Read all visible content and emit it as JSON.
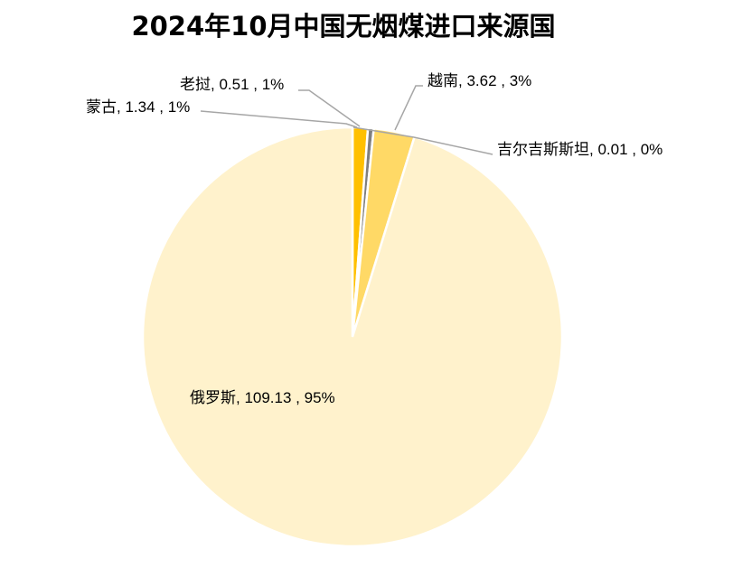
{
  "chart_data": {
    "type": "pie",
    "title": "2024年10月中国无烟煤进口来源国",
    "slices": [
      {
        "name": "吉尔吉斯斯坦",
        "value": 0.01,
        "percent": "0%",
        "color": "#2e75b6",
        "label": "吉尔吉斯斯坦, 0.01 , 0%"
      },
      {
        "name": "蒙古",
        "value": 1.34,
        "percent": "1%",
        "color": "#ffc000",
        "label": "蒙古, 1.34 , 1%"
      },
      {
        "name": "老挝",
        "value": 0.51,
        "percent": "1%",
        "color": "#7f7f7f",
        "label": "老挝, 0.51 , 1%"
      },
      {
        "name": "越南",
        "value": 3.62,
        "percent": "3%",
        "color": "#ffd966",
        "label": "越南, 3.62 , 3%"
      },
      {
        "name": "俄罗斯",
        "value": 109.13,
        "percent": "95%",
        "color": "#fff2cc",
        "label": "俄罗斯, 109.13 , 95%"
      }
    ]
  }
}
